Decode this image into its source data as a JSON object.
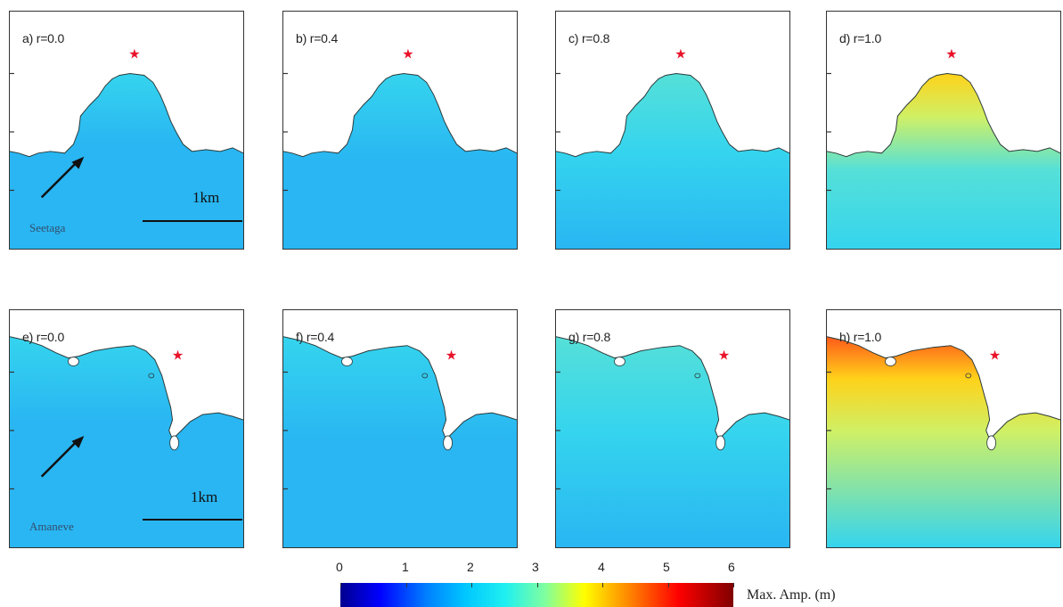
{
  "panels": [
    {
      "label": "a) r=0.0",
      "site": "top",
      "level": 0
    },
    {
      "label": "b) r=0.4",
      "site": "top",
      "level": 1
    },
    {
      "label": "c) r=0.8",
      "site": "top",
      "level": 2
    },
    {
      "label": "d) r=1.0",
      "site": "top",
      "level": 3
    },
    {
      "label": "e) r=0.0",
      "site": "bottom",
      "level": 0
    },
    {
      "label": "f) r=0.4",
      "site": "bottom",
      "level": 1
    },
    {
      "label": "g) r=0.8",
      "site": "bottom",
      "level": 2
    },
    {
      "label": "h) r=1.0",
      "site": "bottom",
      "level": 3
    }
  ],
  "annotations": {
    "scale_top": "1km",
    "scale_bottom": "1km",
    "place_top": "Seetaga",
    "place_bottom": "Amaneve"
  },
  "colorbar": {
    "ticks": [
      "0",
      "1",
      "2",
      "3",
      "4",
      "5",
      "6"
    ],
    "title": "Max. Amp. (m)"
  },
  "colors": {
    "star": "#e8132a",
    "water_base": "#29b6f2",
    "water_light": "#35d4ee",
    "water_mid": "#55e0d8",
    "water_high": "#cff066",
    "water_peak": "#ffd21a",
    "water_max": "#ff5a1a"
  }
}
